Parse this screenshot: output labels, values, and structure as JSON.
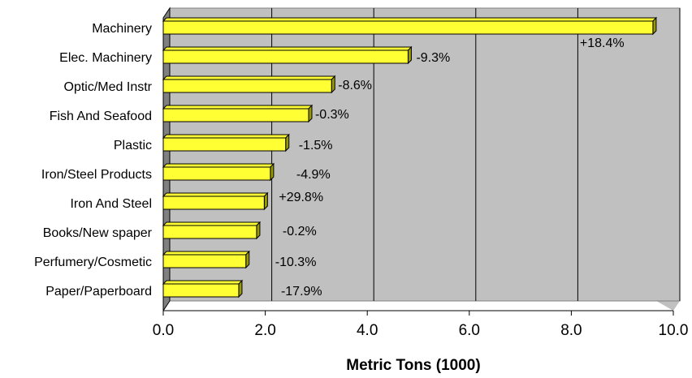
{
  "chart_data": {
    "type": "bar",
    "orientation": "horizontal",
    "style": "3d",
    "categories": [
      "Machinery",
      "Elec. Machinery",
      "Optic/Med Instr",
      "Fish And Seafood",
      "Plastic",
      "Iron/Steel Products",
      "Iron And Steel",
      "Books/New spaper",
      "Perfumery/Cosmetic",
      "Paper/Paperboard"
    ],
    "values": [
      9.6,
      4.8,
      3.3,
      2.85,
      2.4,
      2.1,
      1.98,
      1.83,
      1.62,
      1.48
    ],
    "data_labels": [
      "+18.4%",
      "-9.3%",
      "-8.6%",
      "-0.3%",
      "-1.5%",
      "-4.9%",
      "+29.8%",
      "-0.2%",
      "-10.3%",
      "-17.9%"
    ],
    "xlabel": "Metric Tons (1000)",
    "xlim": [
      0,
      10
    ],
    "xticks": [
      0,
      2,
      4,
      6,
      8,
      10
    ],
    "xtick_labels": [
      "0.0",
      "2.0",
      "4.0",
      "6.0",
      "8.0",
      "10.0"
    ],
    "grid": "vertical",
    "colors": {
      "bar": "#ffff33",
      "bar_side": "#999900",
      "bar_edge": "#000000",
      "plot_background": "#c0c0c0",
      "floor": "#808080"
    }
  }
}
